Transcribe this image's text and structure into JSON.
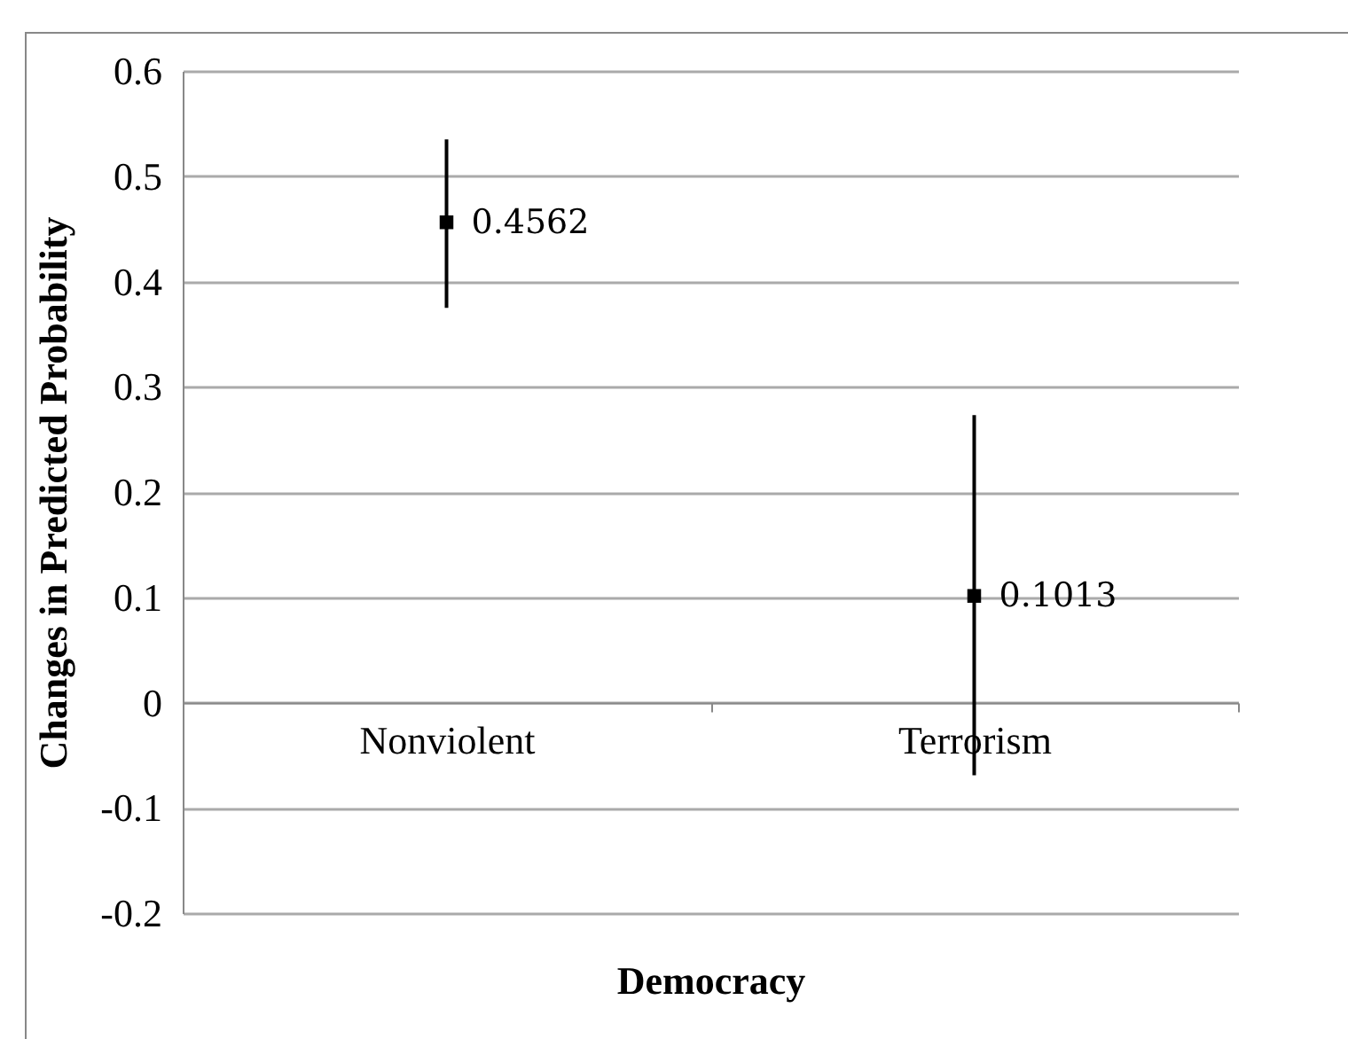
{
  "chart_data": {
    "type": "scatter",
    "xlabel": "Democracy",
    "ylabel": "Changes in Predicted Probability",
    "categories": [
      "Nonviolent",
      "Terrorism"
    ],
    "series": [
      {
        "color": "#000000",
        "values": [
          0.4562,
          0.1013
        ],
        "errors": [
          [
            0.375,
            0.535
          ],
          [
            -0.069,
            0.273
          ]
        ]
      }
    ],
    "ylim": [
      -0.2,
      0.6
    ],
    "yticks": [
      -0.2,
      -0.1,
      0,
      0.1,
      0.2,
      0.3,
      0.4,
      0.5,
      0.6
    ],
    "grid": "y",
    "marker": "square",
    "data_labels": true
  }
}
